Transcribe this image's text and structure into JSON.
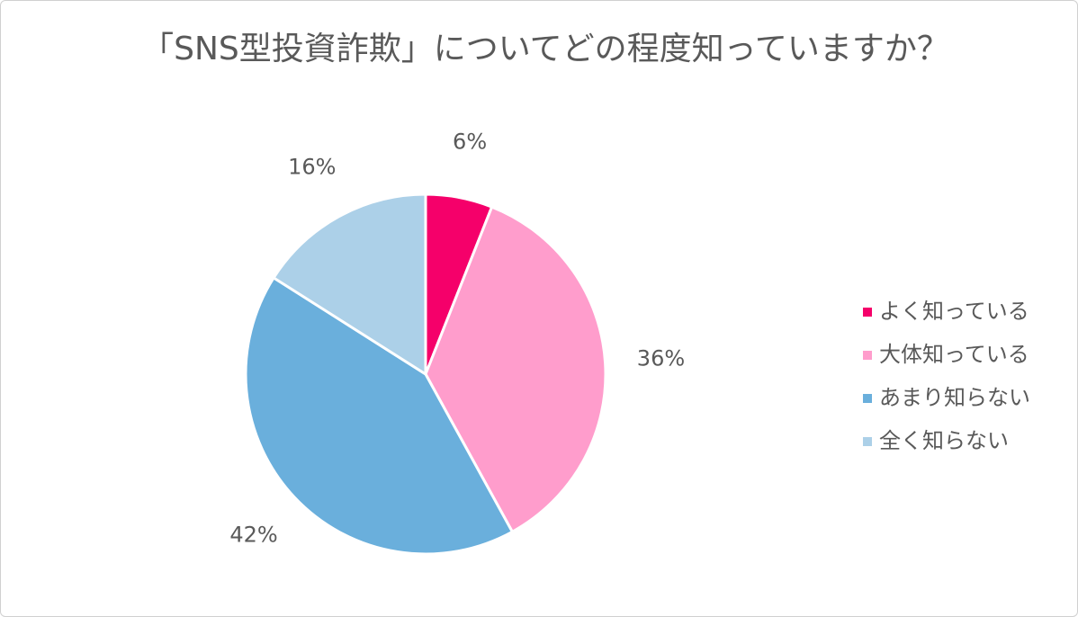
{
  "chart_data": {
    "type": "pie",
    "title": "「SNS型投資詐欺」についてどの程度知っていますか？",
    "categories": [
      "よく知っている",
      "大体知っている",
      "あまり知らない",
      "全く知らない"
    ],
    "values": [
      6,
      36,
      42,
      16
    ],
    "value_labels": [
      "6%",
      "36%",
      "42%",
      "16%"
    ],
    "colors": [
      "#f5006a",
      "#ff9dcc",
      "#6aafdc",
      "#acd0e8"
    ],
    "legend": "right"
  }
}
